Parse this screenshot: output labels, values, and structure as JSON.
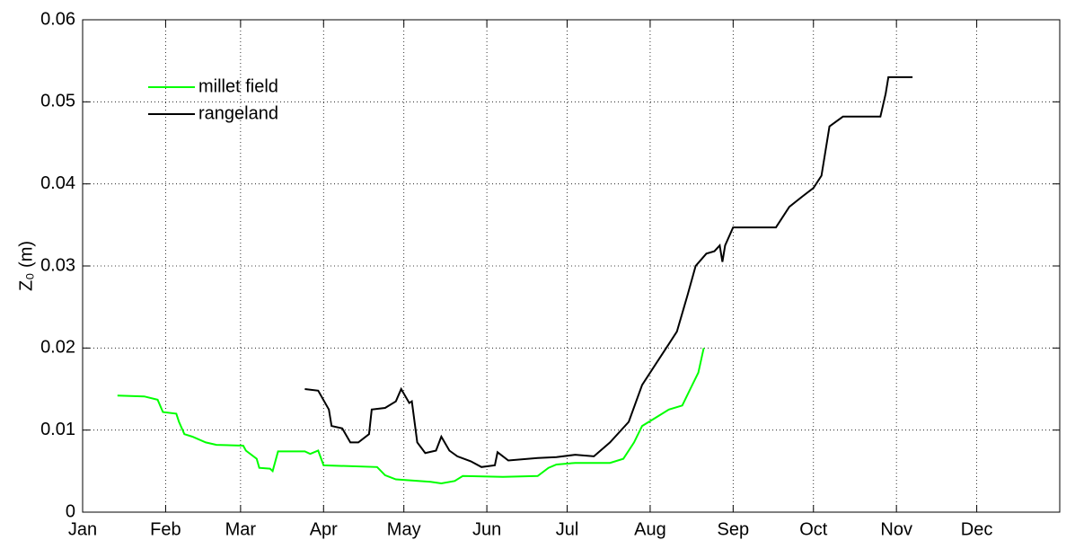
{
  "chart_data": {
    "type": "line",
    "ylabel": "Z₀ (m)",
    "xlim": [
      1,
      366
    ],
    "ylim": [
      0,
      0.06
    ],
    "xticks": [
      {
        "value": 1,
        "label": "Jan"
      },
      {
        "value": 32,
        "label": "Feb"
      },
      {
        "value": 60,
        "label": "Mar"
      },
      {
        "value": 91,
        "label": "Apr"
      },
      {
        "value": 121,
        "label": "May"
      },
      {
        "value": 152,
        "label": "Jun"
      },
      {
        "value": 182,
        "label": "Jul"
      },
      {
        "value": 213,
        "label": "Aug"
      },
      {
        "value": 244,
        "label": "Sep"
      },
      {
        "value": 274,
        "label": "Oct"
      },
      {
        "value": 305,
        "label": "Nov"
      },
      {
        "value": 335,
        "label": "Dec"
      }
    ],
    "yticks": [
      0,
      0.01,
      0.02,
      0.03,
      0.04,
      0.05,
      0.06
    ],
    "grid": true,
    "legend": "upper left",
    "series": [
      {
        "name": "millet field",
        "color": "#00ff00",
        "x": [
          14,
          24,
          29,
          31,
          36,
          37,
          39,
          42,
          47,
          51,
          61,
          62,
          66,
          67,
          71,
          72,
          74,
          84,
          86,
          89,
          91,
          111,
          114,
          118,
          131,
          135,
          140,
          143,
          158,
          171,
          175,
          178,
          185,
          198,
          203,
          207,
          210,
          215,
          220,
          225,
          228,
          231,
          233
        ],
        "values": [
          0.0142,
          0.0141,
          0.0137,
          0.0122,
          0.012,
          0.011,
          0.0095,
          0.0092,
          0.0085,
          0.0082,
          0.0081,
          0.0075,
          0.0065,
          0.0054,
          0.0053,
          0.005,
          0.0074,
          0.0074,
          0.0071,
          0.0075,
          0.0057,
          0.0055,
          0.0045,
          0.004,
          0.0037,
          0.0035,
          0.0038,
          0.0044,
          0.0043,
          0.0044,
          0.0054,
          0.0058,
          0.006,
          0.006,
          0.0065,
          0.0085,
          0.0105,
          0.0115,
          0.0125,
          0.013,
          0.015,
          0.017,
          0.02
        ]
      },
      {
        "name": "rangeland",
        "color": "#000000",
        "x": [
          84,
          89,
          93,
          94,
          98,
          101,
          104,
          108,
          109,
          114,
          118,
          120,
          123,
          124,
          126,
          129,
          133,
          135,
          138,
          141,
          146,
          150,
          155,
          156,
          160,
          171,
          178,
          185,
          192,
          198,
          205,
          210,
          215,
          220,
          223,
          227,
          230,
          234,
          237,
          239,
          240,
          241,
          244,
          260,
          265,
          270,
          274,
          277,
          280,
          285,
          299,
          301,
          302,
          311
        ],
        "values": [
          0.015,
          0.0148,
          0.0125,
          0.0105,
          0.0102,
          0.0085,
          0.0085,
          0.0095,
          0.0125,
          0.0127,
          0.0135,
          0.015,
          0.0133,
          0.0135,
          0.0085,
          0.0072,
          0.0075,
          0.0092,
          0.0075,
          0.0068,
          0.0062,
          0.0055,
          0.0057,
          0.0073,
          0.0063,
          0.0066,
          0.0067,
          0.007,
          0.0068,
          0.0085,
          0.011,
          0.0155,
          0.018,
          0.0205,
          0.022,
          0.0265,
          0.03,
          0.0315,
          0.0318,
          0.0325,
          0.0305,
          0.0325,
          0.0347,
          0.0347,
          0.0372,
          0.0385,
          0.0395,
          0.041,
          0.047,
          0.0482,
          0.0482,
          0.051,
          0.053,
          0.053
        ]
      }
    ]
  }
}
